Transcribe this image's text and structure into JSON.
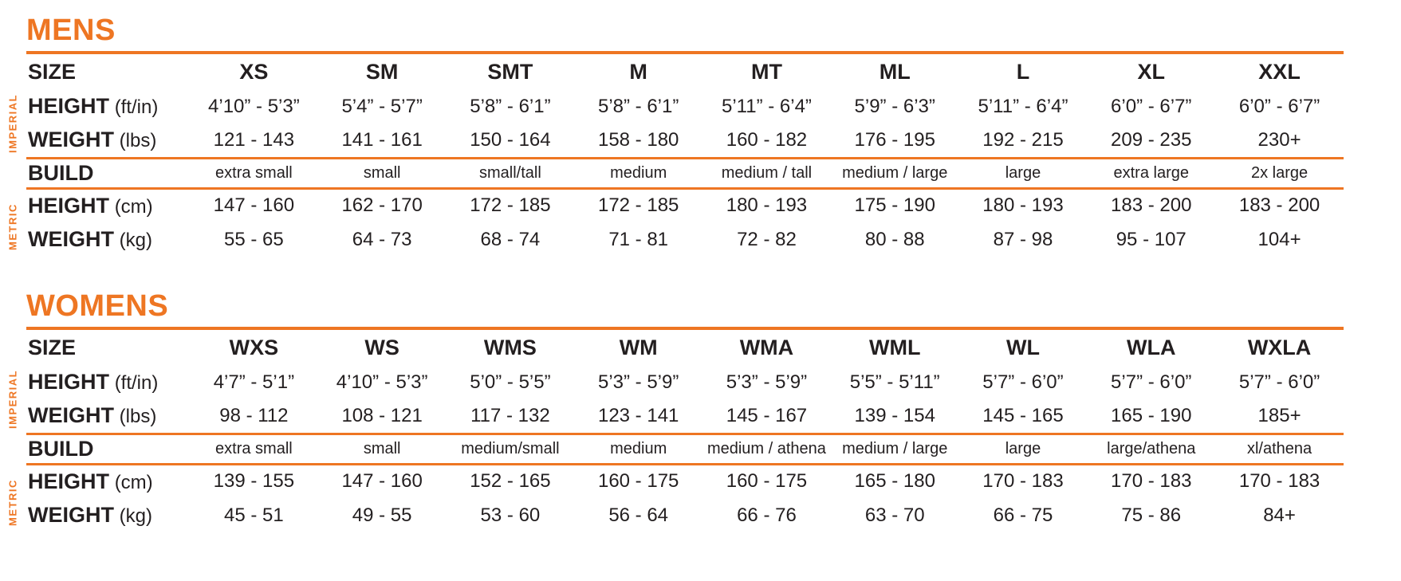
{
  "colors": {
    "accent": "#EE7623",
    "text": "#231F20"
  },
  "chart_data": [
    {
      "type": "table",
      "title": "MENS",
      "corner_label": "SIZE",
      "group_labels": {
        "imperial": "IMPERIAL",
        "metric": "METRIC"
      },
      "columns": [
        "XS",
        "SM",
        "SMT",
        "M",
        "MT",
        "ML",
        "L",
        "XL",
        "XXL"
      ],
      "rows": [
        {
          "label": "HEIGHT",
          "unit": "(ft/in)",
          "group": "imperial",
          "values": [
            "4’10” - 5’3”",
            "5’4” - 5’7”",
            "5’8” - 6’1”",
            "5’8” - 6’1”",
            "5’11” - 6’4”",
            "5’9” - 6’3”",
            "5’11” - 6’4”",
            "6’0” - 6’7”",
            "6’0” - 6’7”"
          ]
        },
        {
          "label": "WEIGHT",
          "unit": "(lbs)",
          "group": "imperial",
          "values": [
            "121 - 143",
            "141 - 161",
            "150 - 164",
            "158 - 180",
            "160 - 182",
            "176 - 195",
            "192 - 215",
            "209 - 235",
            "230+"
          ]
        },
        {
          "label": "BUILD",
          "unit": "",
          "group": "",
          "values": [
            "extra small",
            "small",
            "small/tall",
            "medium",
            "medium / tall",
            "medium / large",
            "large",
            "extra large",
            "2x large"
          ]
        },
        {
          "label": "HEIGHT",
          "unit": "(cm)",
          "group": "metric",
          "values": [
            "147 - 160",
            "162 - 170",
            "172 - 185",
            "172 - 185",
            "180 - 193",
            "175 - 190",
            "180 - 193",
            "183 - 200",
            "183 - 200"
          ]
        },
        {
          "label": "WEIGHT",
          "unit": "(kg)",
          "group": "metric",
          "values": [
            "55 - 65",
            "64 - 73",
            "68 - 74",
            "71 - 81",
            "72 - 82",
            "80 - 88",
            "87 - 98",
            "95 - 107",
            "104+"
          ]
        }
      ]
    },
    {
      "type": "table",
      "title": "WOMENS",
      "corner_label": "SIZE",
      "group_labels": {
        "imperial": "IMPERIAL",
        "metric": "METRIC"
      },
      "columns": [
        "WXS",
        "WS",
        "WMS",
        "WM",
        "WMA",
        "WML",
        "WL",
        "WLA",
        "WXLA"
      ],
      "rows": [
        {
          "label": "HEIGHT",
          "unit": "(ft/in)",
          "group": "imperial",
          "values": [
            "4’7” - 5’1”",
            "4’10” - 5’3”",
            "5’0” - 5’5”",
            "5’3” - 5’9”",
            "5’3” - 5’9”",
            "5’5” - 5’11”",
            "5’7” - 6’0”",
            "5’7” - 6’0”",
            "5’7” - 6’0”"
          ]
        },
        {
          "label": "WEIGHT",
          "unit": "(lbs)",
          "group": "imperial",
          "values": [
            "98 - 112",
            "108 - 121",
            "117 - 132",
            "123 - 141",
            "145 - 167",
            "139 - 154",
            "145 - 165",
            "165 - 190",
            "185+"
          ]
        },
        {
          "label": "BUILD",
          "unit": "",
          "group": "",
          "values": [
            "extra small",
            "small",
            "medium/small",
            "medium",
            "medium / athena",
            "medium / large",
            "large",
            "large/athena",
            "xl/athena"
          ]
        },
        {
          "label": "HEIGHT",
          "unit": "(cm)",
          "group": "metric",
          "values": [
            "139 - 155",
            "147 - 160",
            "152 - 165",
            "160 - 175",
            "160 - 175",
            "165 - 180",
            "170 - 183",
            "170 - 183",
            "170 - 183"
          ]
        },
        {
          "label": "WEIGHT",
          "unit": "(kg)",
          "group": "metric",
          "values": [
            "45 - 51",
            "49 - 55",
            "53 - 60",
            "56 - 64",
            "66 - 76",
            "63 - 70",
            "66 - 75",
            "75 - 86",
            "84+"
          ]
        }
      ]
    }
  ]
}
